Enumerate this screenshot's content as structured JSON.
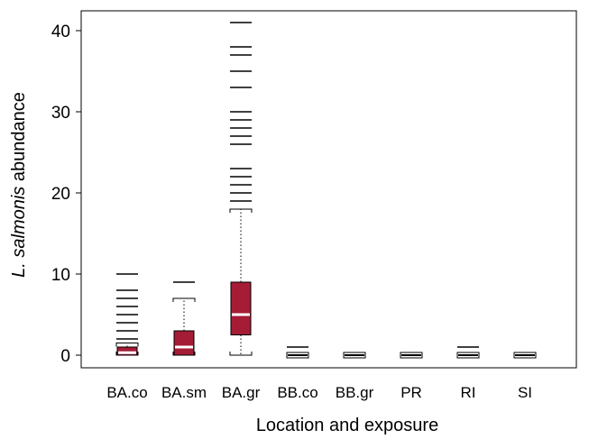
{
  "chart_data": {
    "type": "box",
    "title": "",
    "xlabel": "Location and exposure",
    "ylabel_italic": "L. salmonis",
    "ylabel_rest": " abundance",
    "yticks": [
      0,
      10,
      20,
      30,
      40
    ],
    "ylim": [
      -1.5,
      42.5
    ],
    "grid": false,
    "colors": {
      "box_fill": "#a51c36",
      "median": "#ffffff",
      "outline": "#000000"
    },
    "categories": [
      "BA.co",
      "BA.sm",
      "BA.gr",
      "BB.co",
      "BB.gr",
      "PR",
      "RI",
      "SI"
    ],
    "boxes": [
      {
        "category": "BA.co",
        "q1": 0,
        "median": 0.3,
        "q3": 1,
        "whisker_low": 0,
        "whisker_high": 1.5,
        "outliers": [
          2,
          3,
          4,
          5,
          6,
          7,
          8,
          10
        ]
      },
      {
        "category": "BA.sm",
        "q1": 0,
        "median": 1,
        "q3": 3,
        "whisker_low": 0,
        "whisker_high": 7,
        "outliers": [
          9
        ]
      },
      {
        "category": "BA.gr",
        "q1": 2.5,
        "median": 5,
        "q3": 9,
        "whisker_low": 0,
        "whisker_high": 18,
        "outliers": [
          19,
          20,
          21,
          22,
          23,
          26,
          27,
          28,
          29,
          30,
          33,
          35,
          37,
          38,
          41
        ]
      },
      {
        "category": "BB.co",
        "q1": 0,
        "median": 0,
        "q3": 0,
        "whisker_low": 0,
        "whisker_high": 0,
        "outliers": [
          1
        ]
      },
      {
        "category": "BB.gr",
        "q1": 0,
        "median": 0,
        "q3": 0,
        "whisker_low": 0,
        "whisker_high": 0,
        "outliers": []
      },
      {
        "category": "PR",
        "q1": 0,
        "median": 0,
        "q3": 0,
        "whisker_low": 0,
        "whisker_high": 0,
        "outliers": []
      },
      {
        "category": "RI",
        "q1": 0,
        "median": 0,
        "q3": 0,
        "whisker_low": 0,
        "whisker_high": 0,
        "outliers": [
          1
        ]
      },
      {
        "category": "SI",
        "q1": 0,
        "median": 0,
        "q3": 0,
        "whisker_low": 0,
        "whisker_high": 0,
        "outliers": []
      }
    ]
  }
}
